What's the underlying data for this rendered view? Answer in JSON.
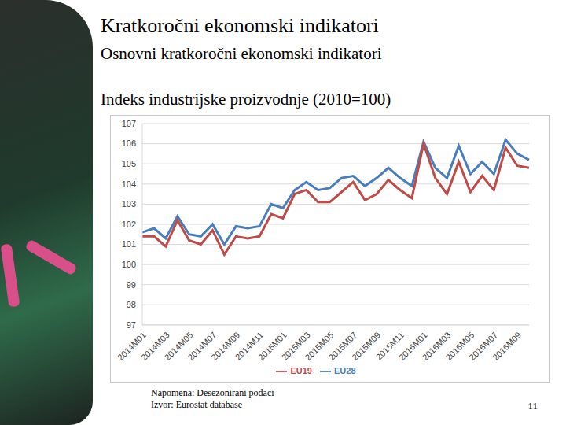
{
  "slide": {
    "heading": "Kratkoročni ekonomski indikatori",
    "subheading": "Osnovni kratkoročni ekonomski indikatori",
    "notes": [
      "Napomena: Desezonirani podaci",
      "Izvor: Eurostat database"
    ],
    "page": "11"
  },
  "chart_data": {
    "type": "line",
    "title": "Indeks industrijske proizvodnje (2010=100)",
    "categories": [
      "2014M01",
      null,
      "2014M03",
      null,
      "2014M05",
      null,
      "2014M07",
      null,
      "2014M09",
      null,
      "2014M11",
      null,
      "2015M01",
      null,
      "2015M03",
      null,
      "2015M05",
      null,
      "2015M07",
      null,
      "2015M09",
      null,
      "2015M11",
      null,
      "2016M01",
      null,
      "2016M03",
      null,
      "2016M05",
      null,
      "2016M07",
      null,
      "2016M09",
      null
    ],
    "series": [
      {
        "name": "EU28",
        "color": "#4a7ebb",
        "values": [
          101.6,
          101.8,
          101.3,
          102.4,
          101.5,
          101.4,
          102.0,
          101.0,
          101.9,
          101.8,
          101.9,
          103.0,
          102.8,
          103.7,
          104.1,
          103.7,
          103.8,
          104.3,
          104.4,
          103.9,
          104.3,
          104.8,
          104.3,
          103.9,
          106.1,
          104.8,
          104.3,
          105.9,
          104.5,
          105.1,
          104.5,
          106.2,
          105.5,
          105.2
        ]
      },
      {
        "name": "EU19",
        "color": "#be4b48",
        "values": [
          101.4,
          101.4,
          100.9,
          102.2,
          101.2,
          101.0,
          101.7,
          100.5,
          101.4,
          101.3,
          101.4,
          102.5,
          102.3,
          103.5,
          103.7,
          103.1,
          103.1,
          103.6,
          104.1,
          103.2,
          103.5,
          104.2,
          103.7,
          103.3,
          106.0,
          104.3,
          103.5,
          105.1,
          103.6,
          104.4,
          103.7,
          105.8,
          104.9,
          104.8
        ]
      }
    ],
    "ylim": [
      97,
      107
    ],
    "yticks": [
      97,
      98,
      99,
      100,
      101,
      102,
      103,
      104,
      105,
      106,
      107
    ],
    "grid": true,
    "legend": "bottom",
    "marker": "none"
  }
}
